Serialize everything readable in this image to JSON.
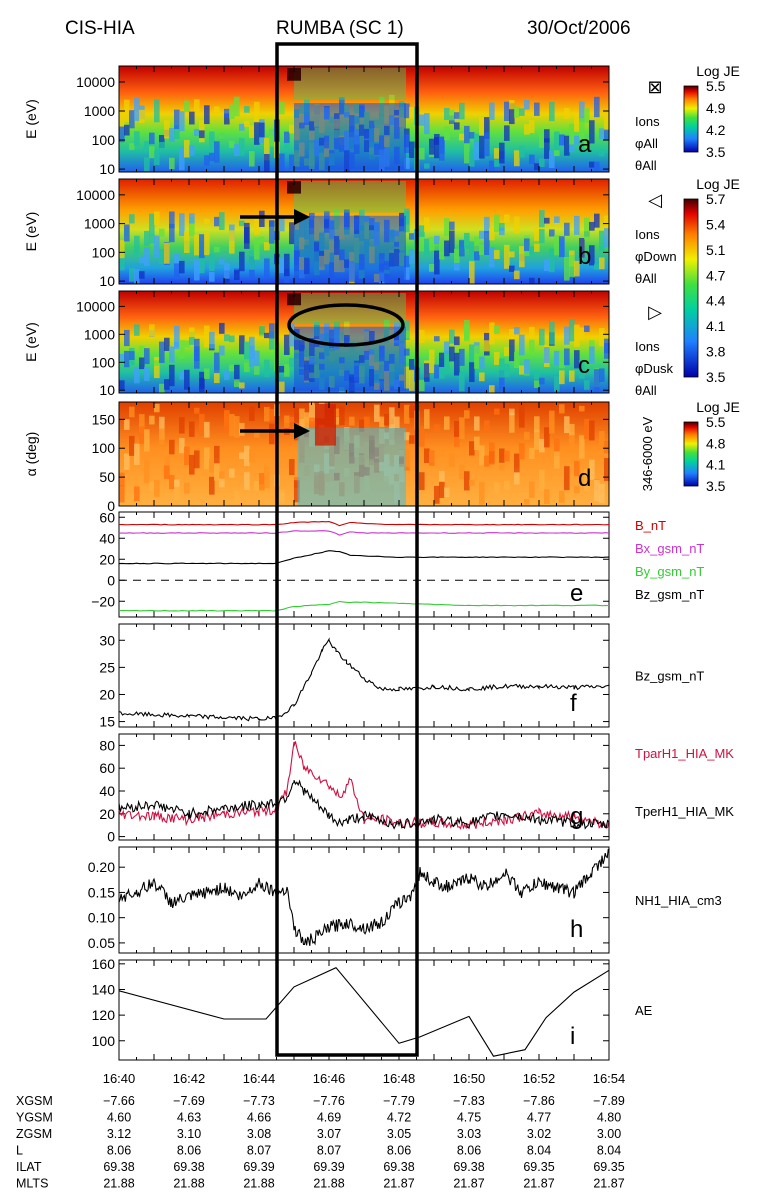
{
  "header": {
    "instrument": "CIS-HIA",
    "mission": "RUMBA (SC 1)",
    "date": "30/Oct/2006"
  },
  "colors": {
    "axis": "#000000",
    "B": "#d00000",
    "Bx": "#cc33cc",
    "By": "#33cc33",
    "Bz": "#000000",
    "Tpar": "#d01040",
    "Tper": "#000000"
  },
  "chart_data": [
    {
      "type": "heatmap",
      "panel": "a",
      "ylabel": "E (eV)",
      "yscale": "log",
      "yticks": [
        10,
        100,
        1000,
        10000
      ],
      "ytick_labels": [
        "10",
        "100",
        "1000",
        "10000"
      ],
      "colorbar": {
        "title": "Log JE",
        "ticks": [
          "5.5",
          "4.9",
          "4.2",
          "3.5"
        ]
      },
      "labels": [
        "Ions",
        "φAll",
        "θAll"
      ],
      "symbol": "⊠"
    },
    {
      "type": "heatmap",
      "panel": "b",
      "ylabel": "E (eV)",
      "yscale": "log",
      "yticks": [
        10,
        100,
        1000,
        10000
      ],
      "ytick_labels": [
        "10",
        "100",
        "1000",
        "10000"
      ],
      "colorbar": {
        "title": "Log JE",
        "ticks": [
          "5.7",
          "5.4",
          "5.1",
          "4.7",
          "4.4",
          "4.1",
          "3.8",
          "3.5"
        ]
      },
      "labels": [
        "Ions",
        "φDown",
        "θAll"
      ],
      "symbol": "◁"
    },
    {
      "type": "heatmap",
      "panel": "c",
      "ylabel": "E (eV)",
      "yscale": "log",
      "yticks": [
        10,
        100,
        1000,
        10000
      ],
      "ytick_labels": [
        "10",
        "100",
        "1000",
        "10000"
      ],
      "labels": [
        "Ions",
        "φDusk",
        "θAll"
      ],
      "symbol": "▷"
    },
    {
      "type": "heatmap",
      "panel": "d",
      "ylabel": "α (deg)",
      "ylim": [
        0,
        180
      ],
      "yticks": [
        0,
        50,
        100,
        150
      ],
      "ytick_labels": [
        "0",
        "50",
        "100",
        "150"
      ],
      "colorbar": {
        "title": "Log JE",
        "ticks": [
          "5.5",
          "4.8",
          "4.1",
          "3.5"
        ]
      },
      "side_label": "346-6000 eV"
    },
    {
      "type": "line",
      "panel": "e",
      "ylim": [
        -35,
        65
      ],
      "yticks": [
        -20,
        0,
        20,
        40,
        60
      ],
      "ytick_labels": [
        "−20",
        "0",
        "20",
        "40",
        "60"
      ],
      "x": [
        40,
        44.5,
        45,
        46,
        46.3,
        46.6,
        47,
        48,
        50,
        54
      ],
      "series": [
        {
          "name": "B_nT",
          "values": [
            53,
            53,
            55,
            56,
            52,
            55,
            54,
            53,
            53,
            53
          ]
        },
        {
          "name": "Bx_gsm_nT",
          "values": [
            45,
            45,
            47,
            47,
            43,
            46,
            45,
            45,
            45,
            45
          ]
        },
        {
          "name": "By_gsm_nT",
          "values": [
            -29,
            -29,
            -25,
            -23,
            -20,
            -21,
            -21,
            -22,
            -24,
            -24
          ]
        },
        {
          "name": "Bz_gsm_nT",
          "values": [
            16,
            16,
            21,
            28,
            27,
            24,
            23,
            22,
            22,
            22
          ]
        }
      ]
    },
    {
      "type": "line",
      "panel": "f",
      "ylim": [
        14,
        33
      ],
      "yticks": [
        15,
        20,
        25,
        30
      ],
      "ytick_labels": [
        "15",
        "20",
        "25",
        "30"
      ],
      "x": [
        40,
        42,
        44,
        44.5,
        45,
        45.5,
        45.8,
        46,
        46.2,
        46.5,
        47,
        47.5,
        48,
        48.5,
        49,
        50,
        51,
        52,
        53,
        54
      ],
      "series": [
        {
          "name": "Bz_gsm_nT",
          "values": [
            16.5,
            16,
            15.5,
            15.6,
            18,
            24,
            28,
            30,
            28,
            26,
            23,
            21,
            21,
            21,
            21.5,
            21,
            21.5,
            21.5,
            21.3,
            21.5
          ]
        }
      ]
    },
    {
      "type": "line",
      "panel": "g",
      "ylim": [
        -3,
        90
      ],
      "yticks": [
        0,
        20,
        40,
        60,
        80
      ],
      "ytick_labels": [
        "0",
        "20",
        "40",
        "60",
        "80"
      ],
      "x": [
        40,
        41,
        42,
        43,
        44,
        44.5,
        44.8,
        45,
        45.3,
        45.6,
        46,
        46.3,
        46.6,
        47,
        47.5,
        48,
        49,
        50,
        51,
        52,
        53,
        54
      ],
      "series": [
        {
          "name": "TparH1_HIA_MK",
          "values": [
            20,
            18,
            15,
            20,
            22,
            24,
            40,
            82,
            60,
            55,
            45,
            35,
            50,
            15,
            15,
            12,
            12,
            10,
            15,
            20,
            18,
            10
          ]
        },
        {
          "name": "TperH1_HIA_MK",
          "values": [
            25,
            28,
            20,
            25,
            28,
            30,
            35,
            50,
            40,
            30,
            18,
            12,
            15,
            18,
            14,
            10,
            15,
            12,
            20,
            15,
            12,
            10
          ]
        }
      ]
    },
    {
      "type": "line",
      "panel": "h",
      "ylim": [
        0.03,
        0.24
      ],
      "yticks": [
        0.05,
        0.1,
        0.15,
        0.2
      ],
      "ytick_labels": [
        "0.05",
        "0.10",
        "0.15",
        "0.20"
      ],
      "x": [
        40,
        40.5,
        41,
        41.5,
        42,
        42.5,
        43,
        43.5,
        44,
        44.5,
        44.8,
        45,
        45.3,
        45.6,
        46,
        46.5,
        47,
        47.5,
        48,
        48.3,
        48.6,
        49,
        49.5,
        50,
        50.5,
        51,
        51.5,
        52,
        52.5,
        53,
        53.5,
        54
      ],
      "series": [
        {
          "name": "NH1_HIA_cm3",
          "values": [
            0.14,
            0.15,
            0.17,
            0.13,
            0.14,
            0.15,
            0.16,
            0.14,
            0.17,
            0.15,
            0.16,
            0.08,
            0.05,
            0.06,
            0.08,
            0.09,
            0.08,
            0.09,
            0.13,
            0.14,
            0.19,
            0.17,
            0.16,
            0.18,
            0.16,
            0.19,
            0.15,
            0.17,
            0.16,
            0.15,
            0.19,
            0.23
          ]
        }
      ]
    },
    {
      "type": "line",
      "panel": "i",
      "ylim": [
        85,
        163
      ],
      "yticks": [
        100,
        120,
        140,
        160
      ],
      "ytick_labels": [
        "100",
        "120",
        "140",
        "160"
      ],
      "x": [
        40,
        43,
        44.2,
        45,
        46.2,
        48,
        48.6,
        50,
        50.7,
        51.6,
        52.2,
        53,
        54
      ],
      "series": [
        {
          "name": "AE",
          "values": [
            139,
            117,
            117,
            142,
            157,
            98,
            103,
            119,
            88,
            93,
            118,
            138,
            155
          ]
        }
      ]
    }
  ],
  "xaxis": {
    "range": [
      "16:40",
      "16:54"
    ],
    "ticks": [
      "16:40",
      "16:42",
      "16:44",
      "16:46",
      "16:48",
      "16:50",
      "16:52",
      "16:54"
    ]
  },
  "ephemeris": {
    "rows": [
      {
        "label": "XGSM",
        "values": [
          "−7.66",
          "−7.69",
          "−7.73",
          "−7.76",
          "−7.79",
          "−7.83",
          "−7.86",
          "−7.89"
        ]
      },
      {
        "label": "YGSM",
        "values": [
          "4.60",
          "4.63",
          "4.66",
          "4.69",
          "4.72",
          "4.75",
          "4.77",
          "4.80"
        ]
      },
      {
        "label": "ZGSM",
        "values": [
          "3.12",
          "3.10",
          "3.08",
          "3.07",
          "3.05",
          "3.03",
          "3.02",
          "3.00"
        ]
      },
      {
        "label": "L",
        "values": [
          "8.06",
          "8.06",
          "8.07",
          "8.07",
          "8.06",
          "8.06",
          "8.04",
          "8.04"
        ]
      },
      {
        "label": "ILAT",
        "values": [
          "69.38",
          "69.38",
          "69.39",
          "69.39",
          "69.38",
          "69.38",
          "69.35",
          "69.35"
        ]
      },
      {
        "label": "MLTS",
        "values": [
          "21.88",
          "21.88",
          "21.88",
          "21.88",
          "21.87",
          "21.87",
          "21.87",
          "21.87"
        ]
      }
    ]
  }
}
